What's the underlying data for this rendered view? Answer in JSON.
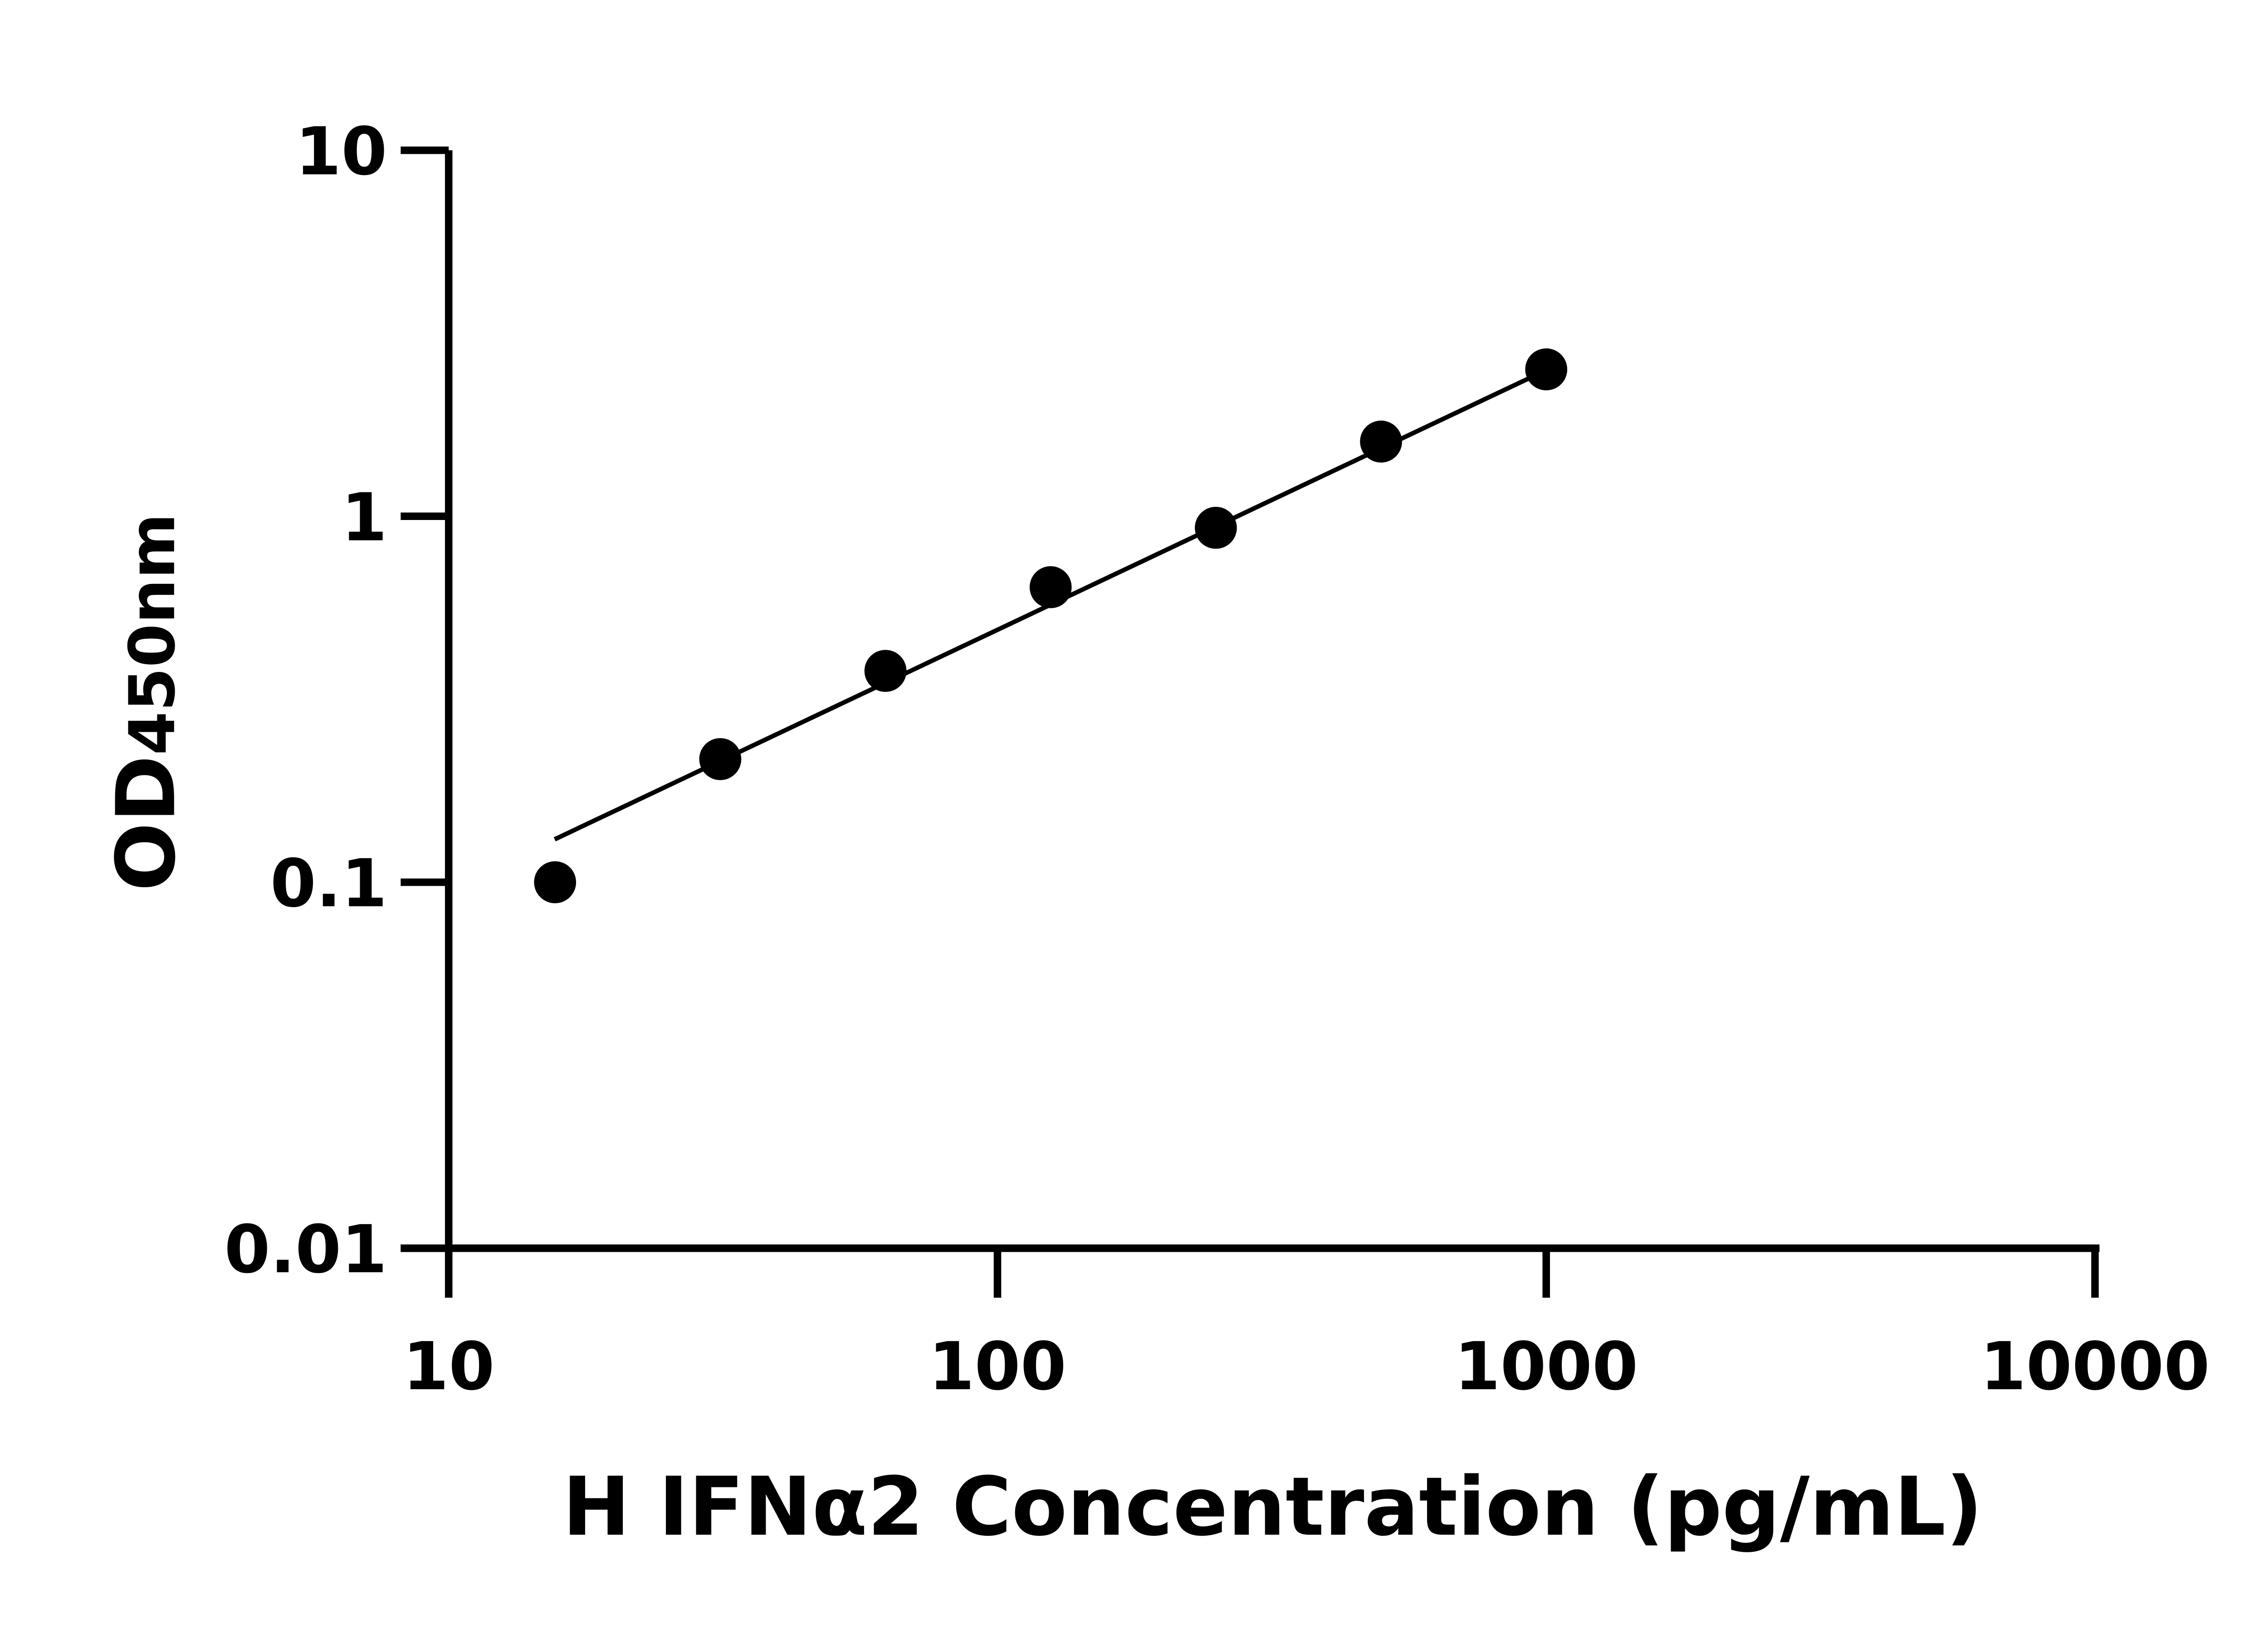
{
  "chart_data": {
    "type": "scatter",
    "title": "",
    "xlabel": "H IFNα2 Concentration (pg/mL)",
    "ylabel_main": "OD",
    "ylabel_sub": "450nm",
    "x_scale": "log",
    "y_scale": "log",
    "xlim": [
      10,
      10000
    ],
    "ylim": [
      0.01,
      10
    ],
    "x_ticks": [
      "10",
      "100",
      "1000",
      "10000"
    ],
    "y_ticks": [
      "0.01",
      "0.1",
      "1",
      "10"
    ],
    "grid": false,
    "legend": "none",
    "points": {
      "x": [
        15.625,
        31.25,
        62.5,
        125,
        250,
        500,
        1000
      ],
      "y": [
        0.1,
        0.217,
        0.378,
        0.64,
        0.93,
        1.6,
        2.52
      ]
    },
    "fit_line": {
      "x": [
        15.6,
        940
      ],
      "y": [
        0.131,
        2.4
      ]
    },
    "colors": {
      "marker": "#000000",
      "line": "#000000",
      "axis": "#000000"
    }
  }
}
